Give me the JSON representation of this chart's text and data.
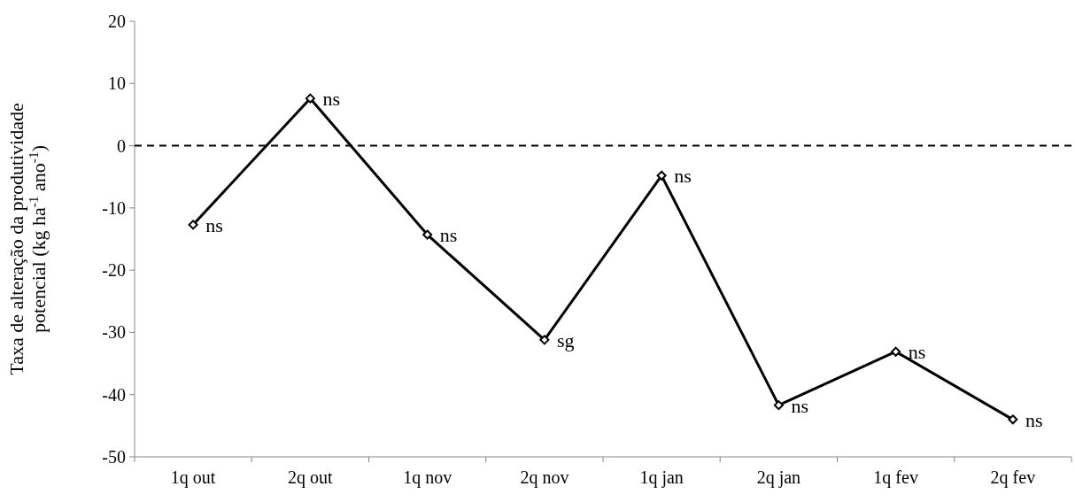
{
  "chart_data": {
    "type": "line",
    "ylabel": "Taxa de alteração da produtividade potencial (kg ha$^{-1}$ ano$^{-1}$)",
    "categories": [
      "1q out",
      "2q out",
      "1q nov",
      "2q nov",
      "1q jan",
      "2q jan",
      "1q fev",
      "2q fev"
    ],
    "series": [
      {
        "color": "#000000",
        "values": [
          -12.7,
          7.6,
          -14.3,
          -31.2,
          -4.8,
          -41.7,
          -33.1,
          -44.0
        ],
        "value_labels": [
          "ns",
          "ns",
          "ns",
          "sg",
          "ns",
          "ns",
          "ns",
          "ns"
        ]
      }
    ],
    "ylim": [
      -50,
      20
    ],
    "yticks": [
      -50,
      -40,
      -30,
      -20,
      -10,
      0,
      10,
      20
    ],
    "grid": false,
    "marker": "diamond",
    "line_style": "solid",
    "ref_lines": [
      {
        "axis": "y",
        "value": 0,
        "line_style": "dashed",
        "color": "#000000"
      }
    ]
  }
}
